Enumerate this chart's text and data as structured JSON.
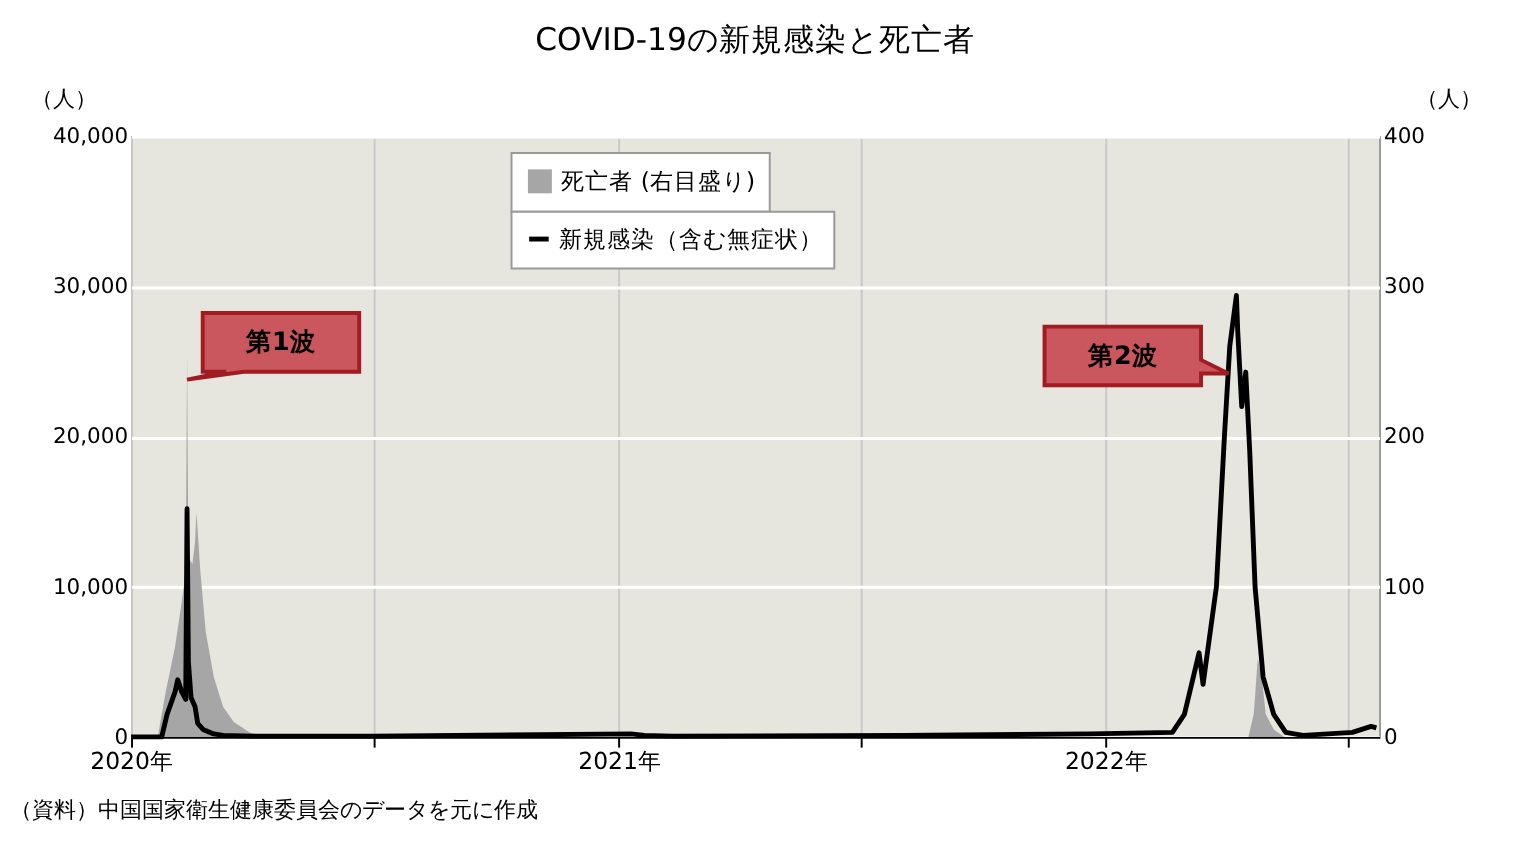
{
  "chart_data": {
    "type": "line",
    "title": "COVID-19の新規感染と死亡者",
    "ylabel": "（人）",
    "y2label": "（人）",
    "xlim": [
      "2020-01-01",
      "2022-07-25"
    ],
    "xticks": [
      {
        "value": "2020-01-01",
        "label": "2020年"
      },
      {
        "value": "2020-07-01",
        "label": null
      },
      {
        "value": "2021-01-01",
        "label": "2021年"
      },
      {
        "value": "2021-07-01",
        "label": null
      },
      {
        "value": "2022-01-01",
        "label": "2022年"
      },
      {
        "value": "2022-07-01",
        "label": null
      }
    ],
    "ylim": [
      0,
      40000
    ],
    "yticks": [
      0,
      {
        "value": 10000,
        "label": "10,000"
      },
      {
        "value": 20000,
        "label": "20,000"
      },
      {
        "value": 30000,
        "label": "30,000"
      },
      {
        "value": 40000,
        "label": "40,000"
      }
    ],
    "y2lim": [
      0,
      400
    ],
    "y2ticks": [
      0,
      100,
      200,
      300,
      400
    ],
    "grid": true,
    "legend": "top",
    "series": [
      {
        "name": "死亡者 (右目盛り)",
        "type": "area",
        "axis": "y2",
        "color": "#a6a6a6",
        "x": [
          "2020-01-01",
          "2020-01-21",
          "2020-01-27",
          "2020-02-03",
          "2020-02-08",
          "2020-02-11",
          "2020-02-12",
          "2020-02-13",
          "2020-02-16",
          "2020-02-18",
          "2020-02-19",
          "2020-02-22",
          "2020-02-26",
          "2020-03-03",
          "2020-03-10",
          "2020-03-18",
          "2020-03-30",
          "2020-04-10",
          "2022-04-18",
          "2022-04-22",
          "2022-04-25",
          "2022-04-28",
          "2022-05-01",
          "2022-05-07",
          "2022-05-15",
          "2022-07-25"
        ],
        "values": [
          0,
          0,
          30,
          60,
          90,
          110,
          254,
          120,
          115,
          130,
          150,
          110,
          70,
          40,
          20,
          10,
          3,
          0,
          0,
          15,
          52,
          40,
          15,
          5,
          0,
          0
        ]
      },
      {
        "name": "新規感染（含む無症状）",
        "color": "#000000",
        "x": [
          "2020-01-01",
          "2020-01-24",
          "2020-01-28",
          "2020-02-03",
          "2020-02-05",
          "2020-02-08",
          "2020-02-11",
          "2020-02-12",
          "2020-02-13",
          "2020-02-15",
          "2020-02-18",
          "2020-02-20",
          "2020-02-24",
          "2020-03-03",
          "2020-03-10",
          "2020-04-01",
          "2020-07-01",
          "2021-01-10",
          "2021-01-20",
          "2021-02-10",
          "2021-08-01",
          "2021-12-20",
          "2022-02-20",
          "2022-03-01",
          "2022-03-12",
          "2022-03-15",
          "2022-03-25",
          "2022-03-31",
          "2022-04-04",
          "2022-04-09",
          "2022-04-10",
          "2022-04-13",
          "2022-04-16",
          "2022-04-19",
          "2022-04-23",
          "2022-04-29",
          "2022-05-07",
          "2022-05-16",
          "2022-05-29",
          "2022-07-05",
          "2022-07-19",
          "2022-07-23"
        ],
        "values": [
          0,
          0,
          1500,
          3000,
          3800,
          3000,
          2500,
          15200,
          5000,
          2600,
          2000,
          900,
          500,
          200,
          100,
          50,
          50,
          200,
          100,
          50,
          100,
          200,
          300,
          1500,
          5600,
          3500,
          10000,
          20000,
          26000,
          29400,
          27000,
          22000,
          24300,
          19000,
          10000,
          4000,
          1500,
          300,
          100,
          300,
          700,
          600
        ]
      }
    ],
    "annotations": [
      {
        "text": "第1波",
        "x": "2020-02-12",
        "y": 23800
      },
      {
        "text": "第2波",
        "x": "2022-04-03",
        "y": 24200
      },
      "（資料）中国国家衛生健康委員会のデータを元に作成"
    ]
  }
}
